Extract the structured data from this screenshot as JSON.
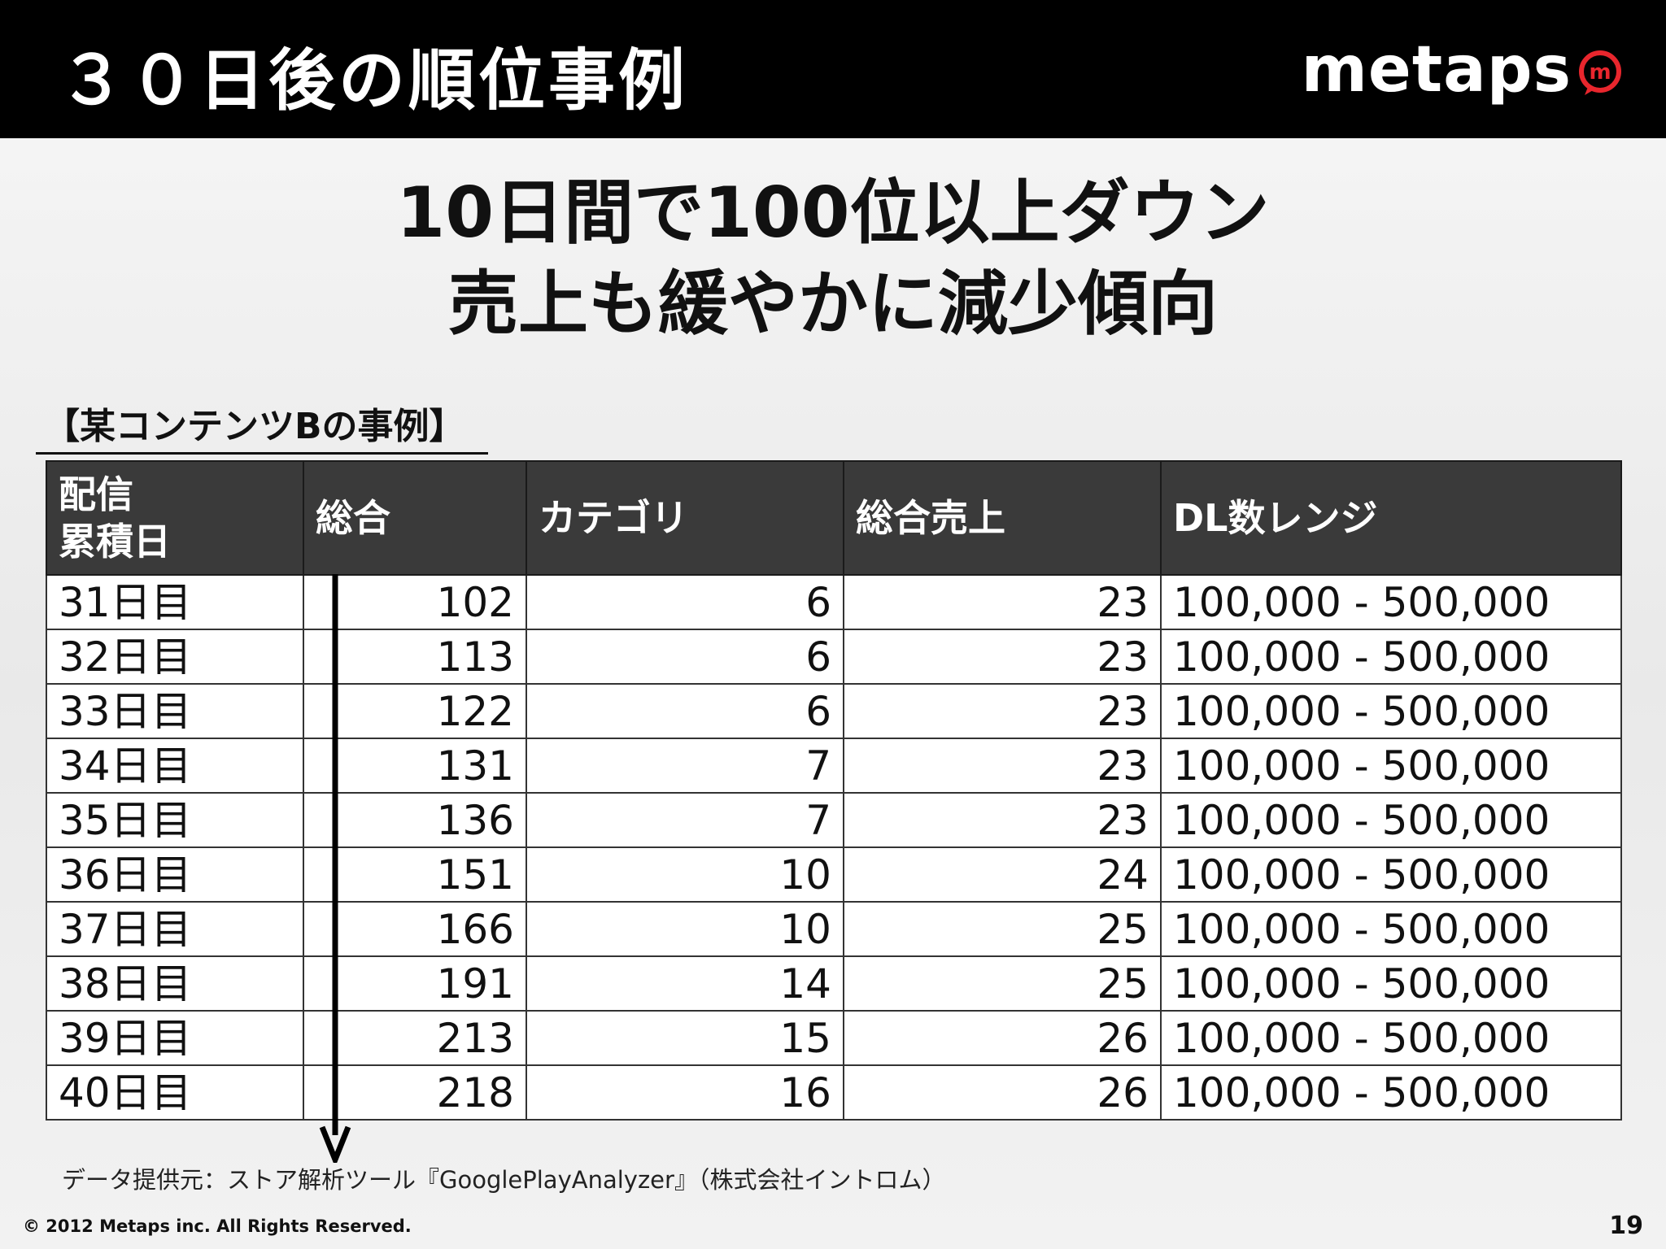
{
  "header": {
    "title": "３０日後の順位事例",
    "logo_text": "metaps",
    "logo_mark": "m",
    "logo_mark_color": "#e8262d"
  },
  "headline": {
    "line1": "10日間で100位以上ダウン",
    "line2": "売上も緩やかに減少傾向"
  },
  "section_label": "【某コンテンツBの事例】",
  "table": {
    "headers": {
      "day": [
        "配信",
        "累積日"
      ],
      "overall": "総合",
      "category": "カテゴリ",
      "overall_sales": "総合売上",
      "dl_range": "DL数レンジ"
    },
    "rows": [
      {
        "day": "31日目",
        "overall": "102",
        "category": "6",
        "sales": "23",
        "dl": "100,000 - 500,000"
      },
      {
        "day": "32日目",
        "overall": "113",
        "category": "6",
        "sales": "23",
        "dl": "100,000 - 500,000"
      },
      {
        "day": "33日目",
        "overall": "122",
        "category": "6",
        "sales": "23",
        "dl": "100,000 - 500,000"
      },
      {
        "day": "34日目",
        "overall": "131",
        "category": "7",
        "sales": "23",
        "dl": "100,000 - 500,000"
      },
      {
        "day": "35日目",
        "overall": "136",
        "category": "7",
        "sales": "23",
        "dl": "100,000 - 500,000"
      },
      {
        "day": "36日目",
        "overall": "151",
        "category": "10",
        "sales": "24",
        "dl": "100,000 - 500,000"
      },
      {
        "day": "37日目",
        "overall": "166",
        "category": "10",
        "sales": "25",
        "dl": "100,000 - 500,000"
      },
      {
        "day": "38日目",
        "overall": "191",
        "category": "14",
        "sales": "25",
        "dl": "100,000 - 500,000"
      },
      {
        "day": "39日目",
        "overall": "213",
        "category": "15",
        "sales": "26",
        "dl": "100,000 - 500,000"
      },
      {
        "day": "40日目",
        "overall": "218",
        "category": "16",
        "sales": "26",
        "dl": "100,000 - 500,000"
      }
    ]
  },
  "source": "データ提供元：ストア解析ツール『GooglePlayAnalyzer』（株式会社イントロム）",
  "footer": {
    "copyright": "© 2012 Metaps inc. All Rights Reserved.",
    "page_number": "19"
  }
}
